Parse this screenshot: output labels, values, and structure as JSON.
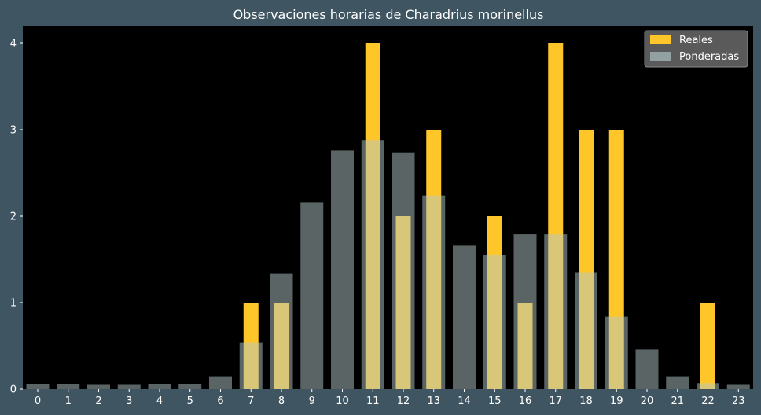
{
  "chart_data": {
    "type": "bar",
    "title": "Observaciones horarias de Charadrius morinellus",
    "xlabel": "",
    "ylabel": "",
    "categories": [
      "0",
      "1",
      "2",
      "3",
      "4",
      "5",
      "6",
      "7",
      "8",
      "9",
      "10",
      "11",
      "12",
      "13",
      "14",
      "15",
      "16",
      "17",
      "18",
      "19",
      "20",
      "21",
      "22",
      "23"
    ],
    "ylim": [
      0,
      4.2
    ],
    "yticks": [
      "0",
      "1",
      "2",
      "3",
      "4"
    ],
    "legend_position": "top-right",
    "grid": false,
    "series": [
      {
        "name": "Reales",
        "color": "#ffc629",
        "values": [
          0,
          0,
          0,
          0,
          0,
          0,
          0,
          1,
          1,
          0,
          0,
          4,
          2,
          3,
          0,
          2,
          1,
          4,
          3,
          3,
          0,
          0,
          1,
          0
        ]
      },
      {
        "name": "Ponderadas",
        "color": "#b4c7ca",
        "values": [
          0.06,
          0.06,
          0.05,
          0.05,
          0.06,
          0.06,
          0.14,
          0.54,
          1.34,
          2.16,
          2.76,
          2.88,
          2.73,
          2.24,
          1.66,
          1.55,
          1.79,
          1.79,
          1.35,
          0.84,
          0.46,
          0.14,
          0.07,
          0.05
        ]
      }
    ]
  }
}
